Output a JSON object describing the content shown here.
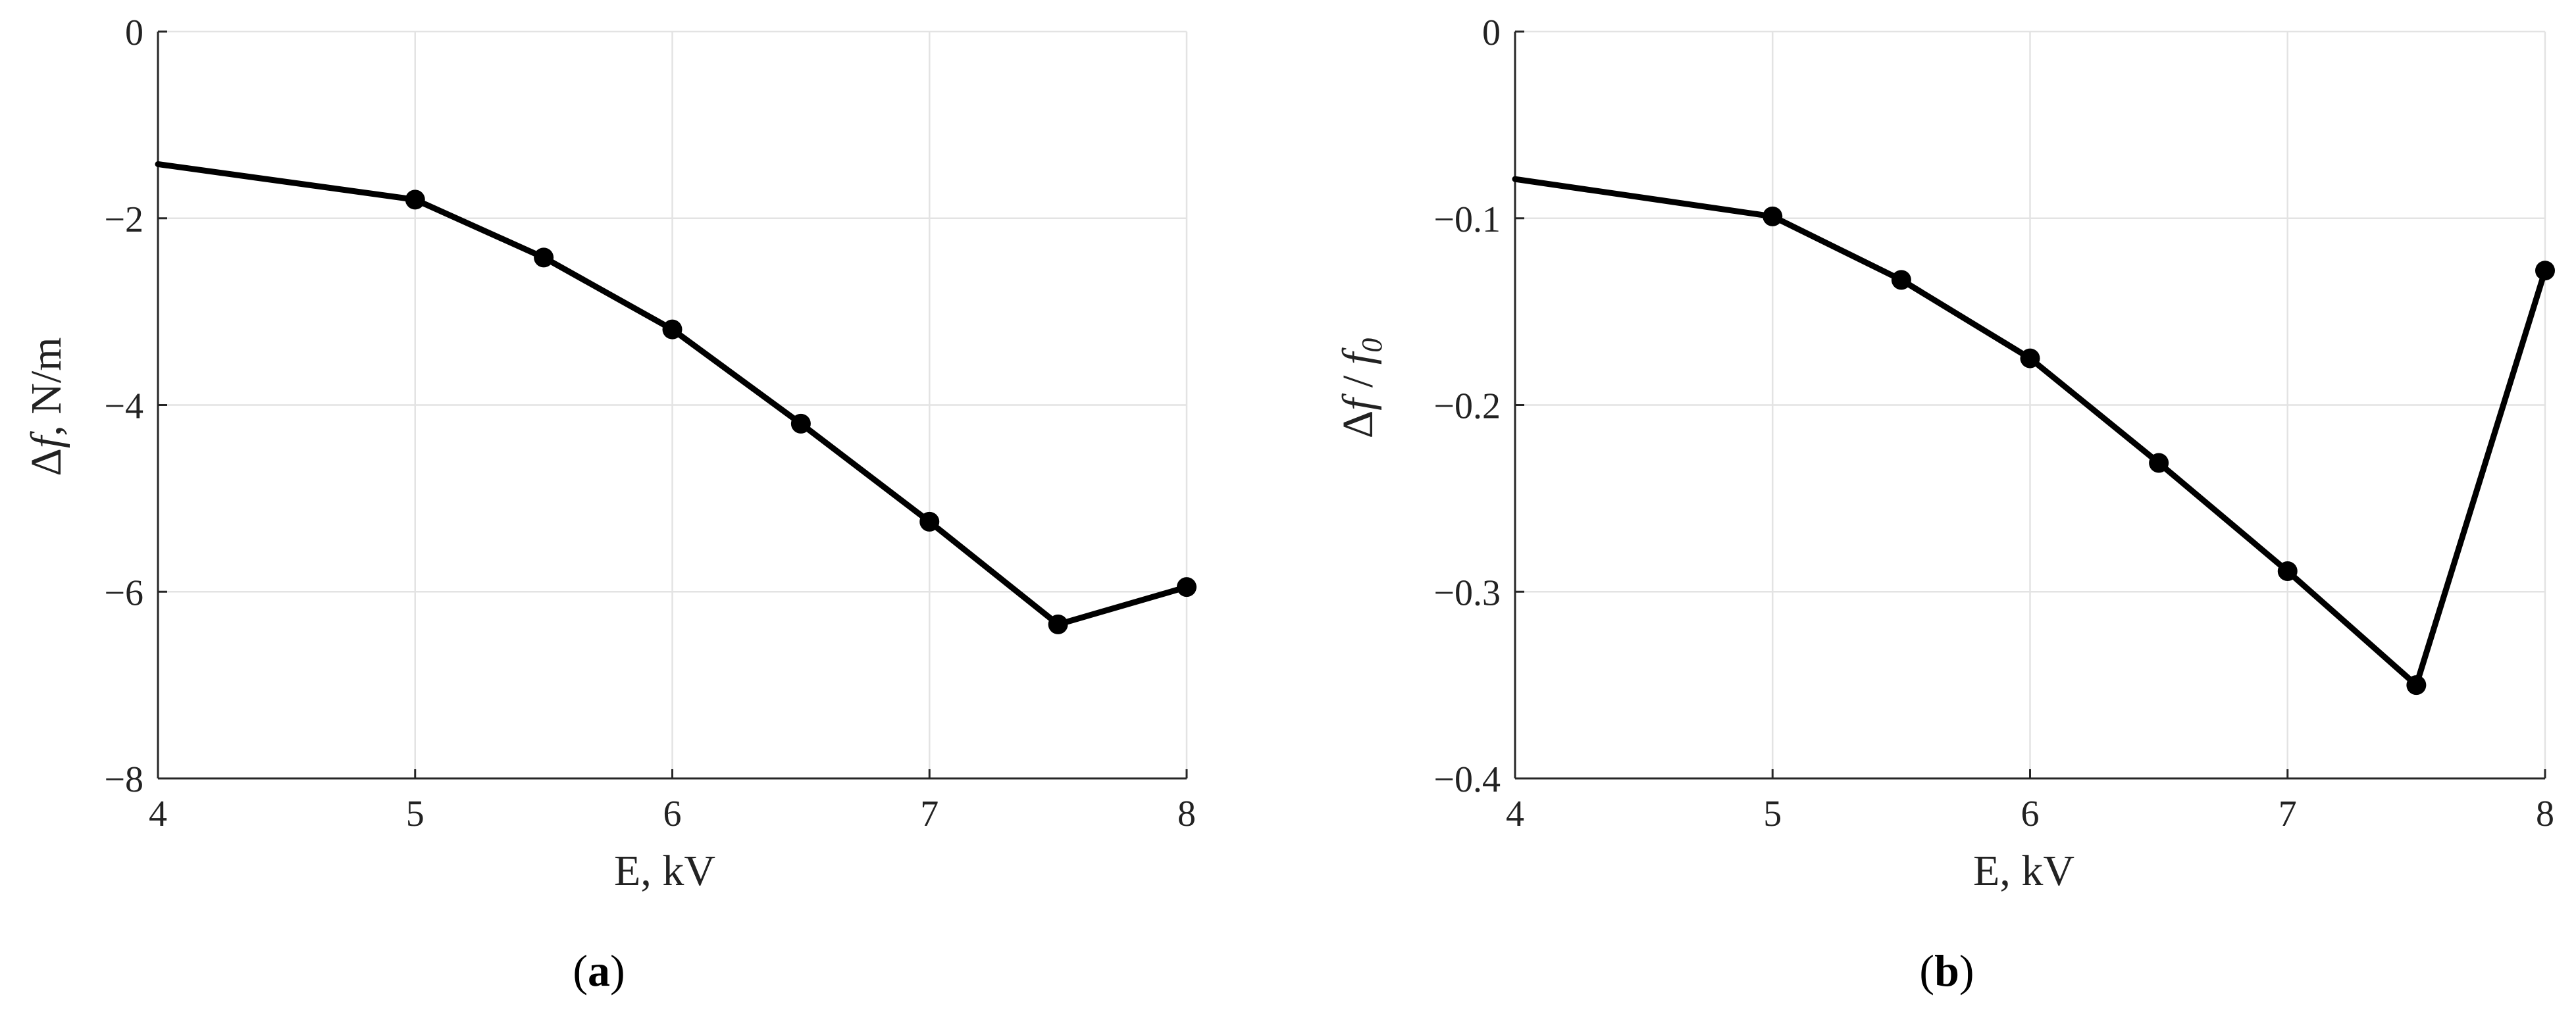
{
  "chart_data": [
    {
      "type": "line",
      "panel_label": "a",
      "xlabel": "E, kV",
      "ylabel_parts": {
        "delta": "Δ",
        "f": "f",
        "rest": ", N/m"
      },
      "xlim": [
        4,
        8
      ],
      "ylim": [
        -8,
        0
      ],
      "xticks": [
        4,
        5,
        6,
        7,
        8
      ],
      "yticks": [
        0,
        -2,
        -4,
        -6,
        -8
      ],
      "ytick_labels": [
        "0",
        "−2",
        "−4",
        "−6",
        "−8"
      ],
      "grid": true,
      "x": [
        4,
        5,
        5.5,
        6,
        6.5,
        7,
        7.5,
        8
      ],
      "y": [
        -1.42,
        -1.8,
        -2.42,
        -3.19,
        -4.2,
        -5.25,
        -6.35,
        -5.95
      ],
      "markers": [
        false,
        true,
        true,
        true,
        true,
        true,
        true,
        true
      ]
    },
    {
      "type": "line",
      "panel_label": "b",
      "xlabel": "E, kV",
      "ylabel_parts": {
        "delta": "Δ",
        "f": "f",
        "slash": " / ",
        "f0": "f",
        "sub": "0"
      },
      "xlim": [
        4,
        8
      ],
      "ylim": [
        -0.4,
        0
      ],
      "xticks": [
        4,
        5,
        6,
        7,
        8
      ],
      "yticks": [
        0,
        -0.1,
        -0.2,
        -0.3,
        -0.4
      ],
      "ytick_labels": [
        "0",
        "−0.1",
        "−0.2",
        "−0.3",
        "−0.4"
      ],
      "grid": true,
      "x": [
        4,
        5,
        5.5,
        6,
        6.5,
        7,
        7.5,
        8
      ],
      "y": [
        -0.079,
        -0.099,
        -0.133,
        -0.175,
        -0.231,
        -0.289,
        -0.35,
        -0.128
      ],
      "markers": [
        false,
        true,
        true,
        true,
        true,
        true,
        true,
        true
      ]
    }
  ]
}
